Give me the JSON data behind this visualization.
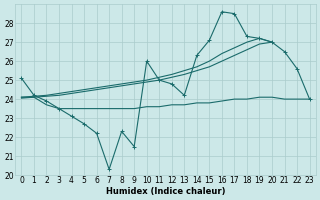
{
  "xlabel": "Humidex (Indice chaleur)",
  "background_color": "#cce8e8",
  "grid_color": "#aacccc",
  "line_color": "#1a6b6b",
  "xlim": [
    -0.5,
    23.5
  ],
  "ylim": [
    20,
    29
  ],
  "xticks": [
    0,
    1,
    2,
    3,
    4,
    5,
    6,
    7,
    8,
    9,
    10,
    11,
    12,
    13,
    14,
    15,
    16,
    17,
    18,
    19,
    20,
    21,
    22,
    23
  ],
  "yticks": [
    20,
    21,
    22,
    23,
    24,
    25,
    26,
    27,
    28
  ],
  "x": [
    0,
    1,
    2,
    3,
    4,
    5,
    6,
    7,
    8,
    9,
    10,
    11,
    12,
    13,
    14,
    15,
    16,
    17,
    18,
    19,
    20,
    21,
    22,
    23
  ],
  "y_zigzag": [
    25.1,
    24.2,
    23.9,
    23.5,
    23.1,
    22.7,
    22.2,
    20.3,
    22.3,
    21.5,
    26.0,
    25.0,
    24.8,
    24.2,
    26.3,
    27.1,
    28.6,
    28.5,
    27.3,
    27.2,
    27.0,
    26.5,
    25.6,
    24.0
  ],
  "y_upper": [
    24.1,
    24.15,
    24.2,
    24.3,
    24.4,
    24.5,
    24.6,
    24.7,
    24.8,
    24.9,
    25.0,
    25.15,
    25.3,
    25.5,
    25.7,
    26.0,
    26.4,
    26.7,
    27.0,
    27.2,
    27.0
  ],
  "y_lower": [
    24.05,
    24.1,
    24.15,
    24.2,
    24.3,
    24.4,
    24.5,
    24.6,
    24.7,
    24.8,
    24.9,
    25.0,
    25.15,
    25.3,
    25.5,
    25.7,
    26.0,
    26.3,
    26.6,
    26.9,
    27.0
  ],
  "y_flat": [
    24.1,
    24.1,
    23.7,
    23.5,
    23.5,
    23.5,
    23.5,
    23.5,
    23.5,
    23.5,
    23.6,
    23.6,
    23.7,
    23.7,
    23.8,
    23.8,
    23.9,
    24.0,
    24.0,
    24.1,
    24.1,
    24.0,
    24.0,
    24.0
  ],
  "x_upper": [
    0,
    1,
    2,
    3,
    4,
    5,
    6,
    7,
    8,
    9,
    10,
    11,
    12,
    13,
    14,
    15,
    16,
    17,
    18,
    19,
    20
  ],
  "xlabel_fontsize": 6,
  "tick_fontsize": 5.5
}
